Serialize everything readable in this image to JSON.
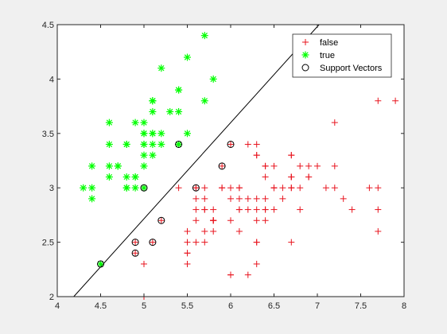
{
  "chart_data": {
    "type": "scatter",
    "xlim": [
      4,
      8
    ],
    "ylim": [
      2,
      4.5
    ],
    "x_ticks": [
      "4",
      "4.5",
      "5",
      "5.5",
      "6",
      "6.5",
      "7",
      "7.5",
      "8"
    ],
    "y_ticks": [
      "2",
      "2.5",
      "3",
      "3.5",
      "4",
      "4.5"
    ],
    "grid": false,
    "legend_position": "top-right",
    "series": [
      {
        "name": "false",
        "marker": "plus",
        "color": "#e8141e",
        "points": [
          [
            7.0,
            3.2
          ],
          [
            6.4,
            3.2
          ],
          [
            6.9,
            3.1
          ],
          [
            5.5,
            2.3
          ],
          [
            6.5,
            2.8
          ],
          [
            5.7,
            2.8
          ],
          [
            6.3,
            3.3
          ],
          [
            4.9,
            2.4
          ],
          [
            6.6,
            2.9
          ],
          [
            5.2,
            2.7
          ],
          [
            5.0,
            2.0
          ],
          [
            5.9,
            3.0
          ],
          [
            6.0,
            2.2
          ],
          [
            6.1,
            2.9
          ],
          [
            5.6,
            2.9
          ],
          [
            6.7,
            3.1
          ],
          [
            5.6,
            3.0
          ],
          [
            5.8,
            2.7
          ],
          [
            6.2,
            2.2
          ],
          [
            5.6,
            2.5
          ],
          [
            5.9,
            3.2
          ],
          [
            6.1,
            2.8
          ],
          [
            6.3,
            2.5
          ],
          [
            6.1,
            2.8
          ],
          [
            6.4,
            2.9
          ],
          [
            6.6,
            3.0
          ],
          [
            6.8,
            2.8
          ],
          [
            6.7,
            3.0
          ],
          [
            6.0,
            2.9
          ],
          [
            5.7,
            2.6
          ],
          [
            5.5,
            2.4
          ],
          [
            5.5,
            2.4
          ],
          [
            5.8,
            2.7
          ],
          [
            6.0,
            2.7
          ],
          [
            5.4,
            3.0
          ],
          [
            6.0,
            3.4
          ],
          [
            6.7,
            3.1
          ],
          [
            6.3,
            2.3
          ],
          [
            5.6,
            3.0
          ],
          [
            5.5,
            2.5
          ],
          [
            5.5,
            2.6
          ],
          [
            6.1,
            3.0
          ],
          [
            5.8,
            2.6
          ],
          [
            5.0,
            2.3
          ],
          [
            5.6,
            2.7
          ],
          [
            5.7,
            3.0
          ],
          [
            5.7,
            2.9
          ],
          [
            6.2,
            2.9
          ],
          [
            5.1,
            2.5
          ],
          [
            5.7,
            2.8
          ],
          [
            6.3,
            3.3
          ],
          [
            5.8,
            2.7
          ],
          [
            7.1,
            3.0
          ],
          [
            6.3,
            2.9
          ],
          [
            6.5,
            3.0
          ],
          [
            7.6,
            3.0
          ],
          [
            4.9,
            2.5
          ],
          [
            7.3,
            2.9
          ],
          [
            6.7,
            2.5
          ],
          [
            7.2,
            3.6
          ],
          [
            6.5,
            3.2
          ],
          [
            6.4,
            2.7
          ],
          [
            6.8,
            3.0
          ],
          [
            5.7,
            2.5
          ],
          [
            5.8,
            2.8
          ],
          [
            6.4,
            3.2
          ],
          [
            6.5,
            3.0
          ],
          [
            7.7,
            3.8
          ],
          [
            7.7,
            2.6
          ],
          [
            6.0,
            2.2
          ],
          [
            6.9,
            3.2
          ],
          [
            5.6,
            2.8
          ],
          [
            7.7,
            2.8
          ],
          [
            6.3,
            2.7
          ],
          [
            6.7,
            3.3
          ],
          [
            7.2,
            3.2
          ],
          [
            6.2,
            2.8
          ],
          [
            6.1,
            3.0
          ],
          [
            6.4,
            2.8
          ],
          [
            7.2,
            3.0
          ],
          [
            7.4,
            2.8
          ],
          [
            7.9,
            3.8
          ],
          [
            6.4,
            2.8
          ],
          [
            6.3,
            2.8
          ],
          [
            6.1,
            2.6
          ],
          [
            7.7,
            3.0
          ],
          [
            6.3,
            3.4
          ],
          [
            6.4,
            3.1
          ],
          [
            6.0,
            3.0
          ],
          [
            6.9,
            3.1
          ],
          [
            6.7,
            3.1
          ],
          [
            6.9,
            3.1
          ],
          [
            5.8,
            2.7
          ],
          [
            6.8,
            3.2
          ],
          [
            6.7,
            3.3
          ],
          [
            6.7,
            3.0
          ],
          [
            6.3,
            2.5
          ],
          [
            6.5,
            3.0
          ],
          [
            6.2,
            3.4
          ],
          [
            5.9,
            3.0
          ]
        ]
      },
      {
        "name": "true",
        "marker": "asterisk",
        "color": "#00ff00",
        "points": [
          [
            5.1,
            3.5
          ],
          [
            4.9,
            3.0
          ],
          [
            4.7,
            3.2
          ],
          [
            4.6,
            3.1
          ],
          [
            5.0,
            3.6
          ],
          [
            5.4,
            3.9
          ],
          [
            4.6,
            3.4
          ],
          [
            5.0,
            3.4
          ],
          [
            4.4,
            2.9
          ],
          [
            4.9,
            3.1
          ],
          [
            5.4,
            3.7
          ],
          [
            4.8,
            3.4
          ],
          [
            4.8,
            3.0
          ],
          [
            4.3,
            3.0
          ],
          [
            5.8,
            4.0
          ],
          [
            5.7,
            4.4
          ],
          [
            5.4,
            3.9
          ],
          [
            5.1,
            3.5
          ],
          [
            5.7,
            3.8
          ],
          [
            5.1,
            3.8
          ],
          [
            5.4,
            3.4
          ],
          [
            5.1,
            3.7
          ],
          [
            4.6,
            3.6
          ],
          [
            5.1,
            3.3
          ],
          [
            4.8,
            3.4
          ],
          [
            5.0,
            3.0
          ],
          [
            5.0,
            3.4
          ],
          [
            5.2,
            3.5
          ],
          [
            5.2,
            3.4
          ],
          [
            4.7,
            3.2
          ],
          [
            4.8,
            3.1
          ],
          [
            5.4,
            3.4
          ],
          [
            5.2,
            4.1
          ],
          [
            5.5,
            4.2
          ],
          [
            4.9,
            3.1
          ],
          [
            5.0,
            3.2
          ],
          [
            5.5,
            3.5
          ],
          [
            4.9,
            3.6
          ],
          [
            4.4,
            3.0
          ],
          [
            5.1,
            3.4
          ],
          [
            5.0,
            3.5
          ],
          [
            4.5,
            2.3
          ],
          [
            4.4,
            3.2
          ],
          [
            5.0,
            3.5
          ],
          [
            5.1,
            3.8
          ],
          [
            4.8,
            3.0
          ],
          [
            5.1,
            3.8
          ],
          [
            4.6,
            3.2
          ],
          [
            5.3,
            3.7
          ],
          [
            5.0,
            3.3
          ]
        ]
      },
      {
        "name": "Support Vectors",
        "marker": "circle",
        "color": "#000000",
        "points": [
          [
            4.5,
            2.3
          ],
          [
            5.0,
            3.0
          ],
          [
            5.4,
            3.4
          ],
          [
            4.9,
            2.4
          ],
          [
            4.9,
            2.5
          ],
          [
            5.1,
            2.5
          ],
          [
            5.2,
            2.7
          ],
          [
            5.6,
            3.0
          ],
          [
            5.9,
            3.2
          ],
          [
            6.0,
            3.4
          ]
        ]
      }
    ],
    "decision_boundary": {
      "color": "#000000",
      "points": [
        [
          4.19,
          2.0
        ],
        [
          7.02,
          4.5
        ]
      ]
    }
  }
}
